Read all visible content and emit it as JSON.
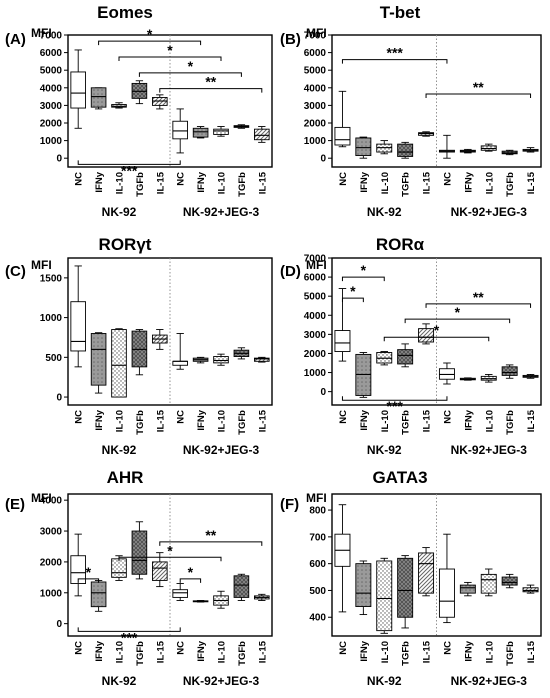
{
  "figure": {
    "group_labels": [
      "NK-92",
      "NK-92+JEG-3"
    ],
    "y_unit_label": "MFI"
  },
  "chart_data": [
    {
      "type": "box",
      "panel_label": "(A)",
      "title": "Eomes",
      "ylabel": "MFI",
      "yticks": [
        0,
        1000,
        2000,
        3000,
        4000,
        5000,
        6000,
        7000
      ],
      "ylim": [
        -500,
        7000
      ],
      "categories": [
        "NC",
        "IFNy",
        "IL-10",
        "TGFb",
        "IL-15",
        "NC",
        "IFNy",
        "IL-10",
        "TGFb",
        "IL-15"
      ],
      "boxes": [
        {
          "min": 1700,
          "q1": 2850,
          "median": 3700,
          "q3": 4900,
          "max": 6150
        },
        {
          "min": 2800,
          "q1": 2900,
          "median": 3500,
          "q3": 4000,
          "max": 4000
        },
        {
          "min": 2850,
          "q1": 2900,
          "median": 2950,
          "q3": 3050,
          "max": 3150
        },
        {
          "min": 3100,
          "q1": 3400,
          "median": 3800,
          "q3": 4250,
          "max": 4400
        },
        {
          "min": 2800,
          "q1": 3000,
          "median": 3250,
          "q3": 3450,
          "max": 3600
        },
        {
          "min": 300,
          "q1": 1100,
          "median": 1550,
          "q3": 2100,
          "max": 2800
        },
        {
          "min": 1150,
          "q1": 1200,
          "median": 1500,
          "q3": 1700,
          "max": 1800
        },
        {
          "min": 1250,
          "q1": 1350,
          "median": 1550,
          "q3": 1650,
          "max": 1800
        },
        {
          "min": 1700,
          "q1": 1750,
          "median": 1800,
          "q3": 1850,
          "max": 1900
        },
        {
          "min": 900,
          "q1": 1050,
          "median": 1300,
          "q3": 1650,
          "max": 1800
        }
      ],
      "significance": [
        {
          "from": 1,
          "to": 6,
          "label": "*",
          "y": 6650
        },
        {
          "from": 2,
          "to": 7,
          "label": "*",
          "y": 5750
        },
        {
          "from": 3,
          "to": 8,
          "label": "*",
          "y": 4850
        },
        {
          "from": 4,
          "to": 9,
          "label": "**",
          "y": 3950
        },
        {
          "from": 0,
          "to": 5,
          "label": "***",
          "y": -350
        }
      ]
    },
    {
      "type": "box",
      "panel_label": "(B)",
      "title": "T-bet",
      "ylabel": "MFI",
      "yticks": [
        0,
        1000,
        2000,
        3000,
        4000,
        5000,
        6000,
        7000
      ],
      "ylim": [
        -500,
        7000
      ],
      "categories": [
        "NC",
        "IFNy",
        "IL-10",
        "TGFb",
        "IL-15",
        "NC",
        "IFNy",
        "IL-10",
        "TGFb",
        "IL-15"
      ],
      "boxes": [
        {
          "min": 650,
          "q1": 750,
          "median": 1050,
          "q3": 1750,
          "max": 3800
        },
        {
          "min": 0,
          "q1": 150,
          "median": 600,
          "q3": 1150,
          "max": 1200
        },
        {
          "min": 250,
          "q1": 350,
          "median": 600,
          "q3": 800,
          "max": 1000
        },
        {
          "min": 0,
          "q1": 100,
          "median": 350,
          "q3": 800,
          "max": 900
        },
        {
          "min": 1250,
          "q1": 1300,
          "median": 1400,
          "q3": 1450,
          "max": 1500
        },
        {
          "min": 0,
          "q1": 350,
          "median": 400,
          "q3": 450,
          "max": 1300
        },
        {
          "min": 300,
          "q1": 350,
          "median": 400,
          "q3": 450,
          "max": 500
        },
        {
          "min": 400,
          "q1": 450,
          "median": 550,
          "q3": 700,
          "max": 800
        },
        {
          "min": 200,
          "q1": 250,
          "median": 300,
          "q3": 400,
          "max": 450
        },
        {
          "min": 350,
          "q1": 400,
          "median": 450,
          "q3": 500,
          "max": 600
        }
      ],
      "significance": [
        {
          "from": 0,
          "to": 5,
          "label": "***",
          "y": 5600
        },
        {
          "from": 4,
          "to": 9,
          "label": "**",
          "y": 3650
        }
      ]
    },
    {
      "type": "box",
      "panel_label": "(C)",
      "title": "RORγt",
      "ylabel": "MFI",
      "yticks": [
        0,
        500,
        1000,
        1500
      ],
      "ylim": [
        -100,
        1750
      ],
      "categories": [
        "NC",
        "IFNy",
        "IL-10",
        "TGFb",
        "IL-15",
        "NC",
        "IFNy",
        "IL-10",
        "TGFb",
        "IL-15"
      ],
      "boxes": [
        {
          "min": 380,
          "q1": 580,
          "median": 700,
          "q3": 1200,
          "max": 1650
        },
        {
          "min": 50,
          "q1": 150,
          "median": 600,
          "q3": 800,
          "max": 810
        },
        {
          "min": 0,
          "q1": 0,
          "median": 400,
          "q3": 850,
          "max": 860
        },
        {
          "min": 280,
          "q1": 380,
          "median": 600,
          "q3": 830,
          "max": 850
        },
        {
          "min": 600,
          "q1": 680,
          "median": 730,
          "q3": 780,
          "max": 850
        },
        {
          "min": 350,
          "q1": 400,
          "median": 450,
          "q3": 450,
          "max": 800
        },
        {
          "min": 430,
          "q1": 450,
          "median": 470,
          "q3": 490,
          "max": 500
        },
        {
          "min": 400,
          "q1": 430,
          "median": 460,
          "q3": 510,
          "max": 540
        },
        {
          "min": 480,
          "q1": 510,
          "median": 550,
          "q3": 590,
          "max": 620
        },
        {
          "min": 440,
          "q1": 450,
          "median": 480,
          "q3": 490,
          "max": 500
        }
      ],
      "significance": []
    },
    {
      "type": "box",
      "panel_label": "(D)",
      "title": "RORα",
      "ylabel": "MFI",
      "yticks": [
        0,
        1000,
        2000,
        3000,
        4000,
        5000,
        6000,
        7000
      ],
      "ylim": [
        -700,
        7000
      ],
      "categories": [
        "NC",
        "IFNy",
        "IL-10",
        "TGFb",
        "IL-15",
        "NC",
        "IFNy",
        "IL-10",
        "TGFb",
        "IL-15"
      ],
      "boxes": [
        {
          "min": 1600,
          "q1": 2100,
          "median": 2550,
          "q3": 3200,
          "max": 5400
        },
        {
          "min": -300,
          "q1": -200,
          "median": 900,
          "q3": 1950,
          "max": 2050
        },
        {
          "min": 1400,
          "q1": 1500,
          "median": 1750,
          "q3": 2050,
          "max": 2100
        },
        {
          "min": 1300,
          "q1": 1450,
          "median": 1900,
          "q3": 2200,
          "max": 2500
        },
        {
          "min": 2500,
          "q1": 2600,
          "median": 2850,
          "q3": 3300,
          "max": 3550
        },
        {
          "min": 400,
          "q1": 650,
          "median": 900,
          "q3": 1200,
          "max": 1500
        },
        {
          "min": 600,
          "q1": 620,
          "median": 650,
          "q3": 700,
          "max": 720
        },
        {
          "min": 500,
          "q1": 600,
          "median": 680,
          "q3": 800,
          "max": 900
        },
        {
          "min": 700,
          "q1": 850,
          "median": 1000,
          "q3": 1300,
          "max": 1400
        },
        {
          "min": 700,
          "q1": 750,
          "median": 800,
          "q3": 850,
          "max": 900
        }
      ],
      "significance": [
        {
          "from": 0,
          "to": 2,
          "label": "*",
          "y": 6000
        },
        {
          "from": 0,
          "to": 1,
          "label": "*",
          "y": 4900
        },
        {
          "from": 4,
          "to": 9,
          "label": "**",
          "y": 4600
        },
        {
          "from": 3,
          "to": 8,
          "label": "*",
          "y": 3800
        },
        {
          "from": 2,
          "to": 7,
          "label": "*",
          "y": 2850
        },
        {
          "from": 0,
          "to": 5,
          "label": "***",
          "y": -450
        }
      ]
    },
    {
      "type": "box",
      "panel_label": "(E)",
      "title": "AHR",
      "ylabel": "MFI",
      "yticks": [
        0,
        1000,
        2000,
        3000,
        4000
      ],
      "ylim": [
        -400,
        4200
      ],
      "categories": [
        "NC",
        "IFNy",
        "IL-10",
        "TGFb",
        "IL-15",
        "NC",
        "IFNy",
        "IL-10",
        "TGFb",
        "IL-15"
      ],
      "boxes": [
        {
          "min": 900,
          "q1": 1300,
          "median": 1650,
          "q3": 2200,
          "max": 2900
        },
        {
          "min": 400,
          "q1": 550,
          "median": 1000,
          "q3": 1350,
          "max": 1400
        },
        {
          "min": 1400,
          "q1": 1500,
          "median": 1650,
          "q3": 2100,
          "max": 2200
        },
        {
          "min": 1450,
          "q1": 1600,
          "median": 2050,
          "q3": 3000,
          "max": 3300
        },
        {
          "min": 1200,
          "q1": 1400,
          "median": 1800,
          "q3": 2000,
          "max": 2300
        },
        {
          "min": 750,
          "q1": 850,
          "median": 1000,
          "q3": 1100,
          "max": 1300
        },
        {
          "min": 700,
          "q1": 710,
          "median": 720,
          "q3": 740,
          "max": 750
        },
        {
          "min": 500,
          "q1": 600,
          "median": 750,
          "q3": 900,
          "max": 1050
        },
        {
          "min": 750,
          "q1": 850,
          "median": 1250,
          "q3": 1550,
          "max": 1600
        },
        {
          "min": 750,
          "q1": 800,
          "median": 850,
          "q3": 900,
          "max": 950
        }
      ],
      "significance": [
        {
          "from": 0,
          "to": 1,
          "label": "*",
          "y": 1450
        },
        {
          "from": 4,
          "to": 9,
          "label": "**",
          "y": 2650
        },
        {
          "from": 2,
          "to": 7,
          "label": "*",
          "y": 2150
        },
        {
          "from": 5,
          "to": 6,
          "label": "*",
          "y": 1450
        },
        {
          "from": 0,
          "to": 5,
          "label": "***",
          "y": -250
        }
      ]
    },
    {
      "type": "box",
      "panel_label": "(F)",
      "title": "GATA3",
      "ylabel": "MFI",
      "yticks": [
        400,
        500,
        600,
        700,
        800
      ],
      "ylim": [
        330,
        860
      ],
      "categories": [
        "NC",
        "IFNy",
        "IL-10",
        "TGFb",
        "IL-15",
        "NC",
        "IFNy",
        "IL-10",
        "TGFb",
        "IL-15"
      ],
      "boxes": [
        {
          "min": 420,
          "q1": 590,
          "median": 650,
          "q3": 710,
          "max": 820
        },
        {
          "min": 410,
          "q1": 440,
          "median": 490,
          "q3": 600,
          "max": 610
        },
        {
          "min": 340,
          "q1": 350,
          "median": 470,
          "q3": 610,
          "max": 620
        },
        {
          "min": 360,
          "q1": 400,
          "median": 500,
          "q3": 620,
          "max": 630
        },
        {
          "min": 480,
          "q1": 490,
          "median": 600,
          "q3": 640,
          "max": 660
        },
        {
          "min": 380,
          "q1": 400,
          "median": 460,
          "q3": 580,
          "max": 710
        },
        {
          "min": 480,
          "q1": 490,
          "median": 510,
          "q3": 520,
          "max": 530
        },
        {
          "min": 480,
          "q1": 490,
          "median": 540,
          "q3": 560,
          "max": 580
        },
        {
          "min": 510,
          "q1": 520,
          "median": 530,
          "q3": 550,
          "max": 560
        },
        {
          "min": 490,
          "q1": 495,
          "median": 500,
          "q3": 510,
          "max": 520
        }
      ],
      "significance": []
    }
  ]
}
